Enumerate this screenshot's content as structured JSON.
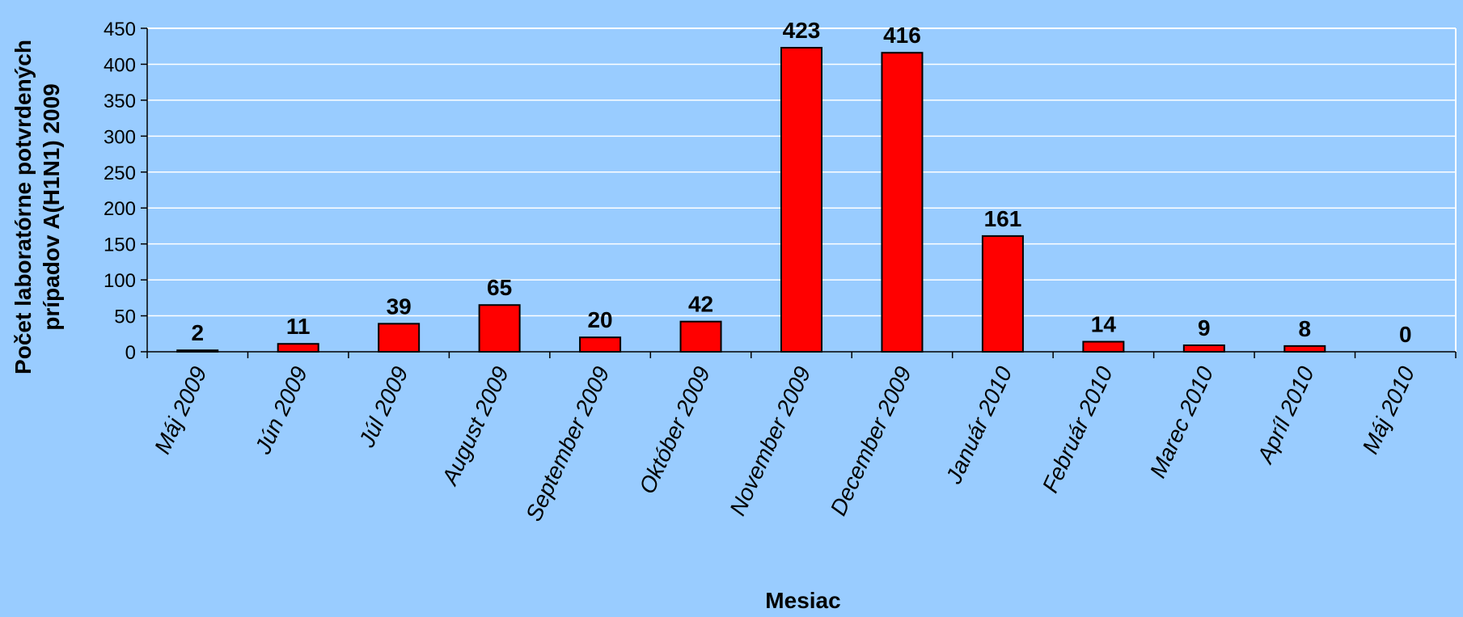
{
  "chart_data": {
    "type": "bar",
    "categories": [
      "Máj 2009",
      "Jún 2009",
      "Júl 2009",
      "August 2009",
      "September 2009",
      "Október 2009",
      "November 2009",
      "December 2009",
      "Január 2010",
      "Február 2010",
      "Marec 2010",
      "Apríl 2010",
      "Máj 2010"
    ],
    "values": [
      2,
      11,
      39,
      65,
      20,
      42,
      423,
      416,
      161,
      14,
      9,
      8,
      0
    ],
    "title": "",
    "xlabel": "Mesiac",
    "ylabel_lines": [
      "Počet laboratórne potvrdených",
      "prípadov A(H1N1) 2009"
    ],
    "ylim": [
      0,
      450
    ],
    "yticks": [
      0,
      50,
      100,
      150,
      200,
      250,
      300,
      350,
      400,
      450
    ],
    "grid": true,
    "colors": {
      "background": "#99ccff",
      "bar_fill": "#ff0000",
      "bar_stroke": "#000000",
      "gridline": "#ffffff"
    }
  }
}
